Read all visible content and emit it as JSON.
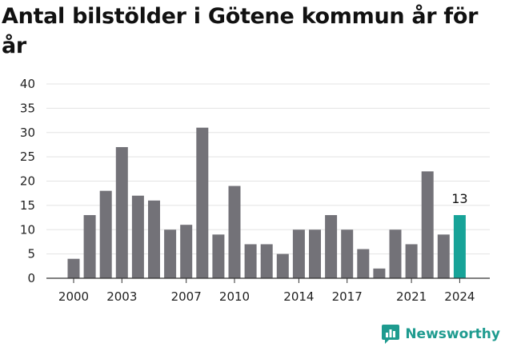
{
  "chart_data": {
    "type": "bar",
    "title": "Antal bilstölder i Götene kommun år för år",
    "xlabel": "",
    "ylabel": "",
    "ylim": [
      0,
      40
    ],
    "yticks": [
      0,
      5,
      10,
      15,
      20,
      25,
      30,
      35,
      40
    ],
    "categories": [
      2000,
      2001,
      2002,
      2003,
      2004,
      2005,
      2006,
      2007,
      2008,
      2009,
      2010,
      2011,
      2012,
      2013,
      2014,
      2015,
      2016,
      2017,
      2018,
      2019,
      2020,
      2021,
      2022,
      2023,
      2024
    ],
    "x_tick_labels": [
      2000,
      2003,
      2007,
      2010,
      2014,
      2017,
      2021,
      2024
    ],
    "values": [
      4,
      13,
      18,
      27,
      17,
      16,
      10,
      11,
      31,
      9,
      19,
      7,
      7,
      5,
      10,
      10,
      13,
      10,
      6,
      2,
      10,
      7,
      22,
      9,
      13
    ],
    "highlight": {
      "category": 2024,
      "label": "13"
    },
    "grid": true,
    "colors": {
      "bar": "#737278",
      "highlight": "#17a398",
      "grid": "#e3e3e3",
      "axis": "#333333"
    }
  },
  "brand": {
    "name": "Newsworthy",
    "icon": "newsworthy-logo-icon",
    "color": "#1e9b8f"
  }
}
